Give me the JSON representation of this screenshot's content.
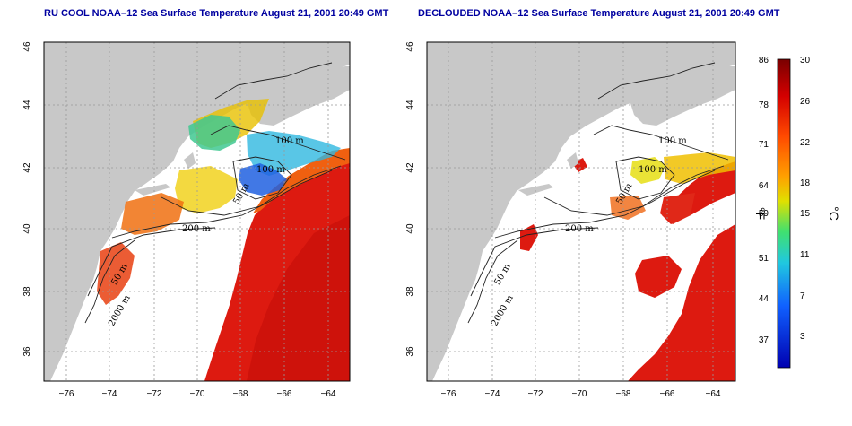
{
  "left_panel": {
    "title": "RU COOL NOAA–12 Sea Surface Temperature August 21, 2001 20:49 GMT"
  },
  "right_panel": {
    "title": "DECLOUDED NOAA–12 Sea Surface Temperature August 21, 2001 20:49 GMT"
  },
  "map": {
    "x_ticks": [
      "−76",
      "−74",
      "−72",
      "−70",
      "−68",
      "−66",
      "−64"
    ],
    "y_ticks": [
      "46",
      "44",
      "42",
      "40",
      "38",
      "36"
    ],
    "contour_labels": {
      "c100_left": "100 m",
      "c100b_left": "100 m",
      "c50_left": "50 m",
      "c200_left": "200 m",
      "c2000_left": "2000 m",
      "c_coast_left": "50 m",
      "c100_right": "100 m",
      "c100b_right": "100 m",
      "c50_right": "50 m",
      "c200_right": "200 m",
      "c2000_right": "2000 m",
      "c_coast_right": "50 m"
    },
    "colors": {
      "land": "#c8c8c8",
      "no_data": "#ffffff",
      "warm": "#dd1a10",
      "hot": "#c40f0a"
    }
  },
  "colorbar": {
    "fahrenheit_ticks": [
      "86",
      "78",
      "71",
      "64",
      "59",
      "51",
      "44",
      "37"
    ],
    "celsius_ticks": [
      "30",
      "26",
      "22",
      "18",
      "15",
      "11",
      "7",
      "3"
    ],
    "fahrenheit_unit": "°F",
    "celsius_unit": "°C",
    "colors": [
      "#7a0000",
      "#d40000",
      "#ff4000",
      "#ffa000",
      "#e0e000",
      "#40e070",
      "#20c0e0",
      "#1060ff",
      "#0000c0"
    ]
  }
}
